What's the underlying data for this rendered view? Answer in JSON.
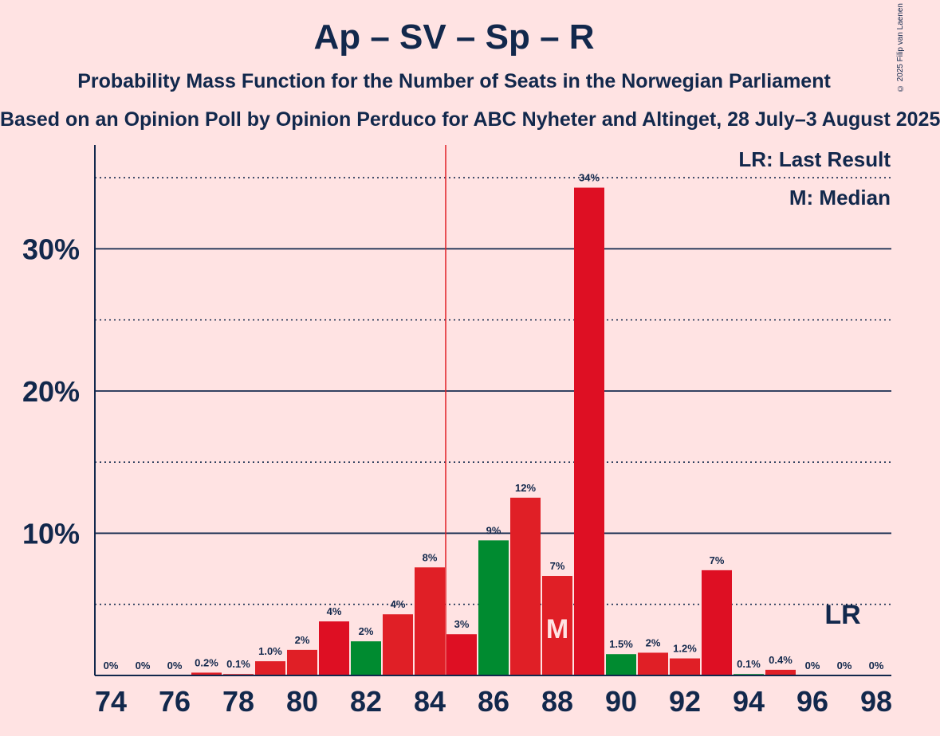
{
  "header": {
    "title": "Ap – SV – Sp – R",
    "subtitle": "Probability Mass Function for the Number of Seats in the Norwegian Parliament",
    "subtitle2": "Based on an Opinion Poll by Opinion Perduco for ABC Nyheter and Altinget, 28 July–3 August 2025",
    "copyright": "© 2025 Filip van Laenen"
  },
  "legend": {
    "lr": "LR: Last Result",
    "m": "M: Median"
  },
  "colors": {
    "background": "#FFE3E3",
    "text": "#12284C",
    "red": "#E01F26",
    "darkred": "#DE0F23",
    "green": "#008B30",
    "median_line": "#E01F26"
  },
  "chart_data": {
    "type": "bar",
    "title": "Ap – SV – Sp – R",
    "x": [
      74,
      75,
      76,
      77,
      78,
      79,
      80,
      81,
      82,
      83,
      84,
      85,
      86,
      87,
      88,
      89,
      90,
      91,
      92,
      93,
      94,
      95,
      96,
      97,
      98
    ],
    "values": [
      0,
      0,
      0,
      0.2,
      0.1,
      1.0,
      1.8,
      3.8,
      2.4,
      4.3,
      7.6,
      2.9,
      9.5,
      12.5,
      7.0,
      34.3,
      1.5,
      1.6,
      1.2,
      7.4,
      0.1,
      0.4,
      0,
      0,
      0
    ],
    "data_labels": [
      "0%",
      "0%",
      "0%",
      "0.2%",
      "0.1%",
      "1.0%",
      "2%",
      "4%",
      "2%",
      "4%",
      "8%",
      "3%",
      "9%",
      "12%",
      "7%",
      "34%",
      "1.5%",
      "2%",
      "1.2%",
      "7%",
      "0.1%",
      "0.4%",
      "0%",
      "0%",
      "0%"
    ],
    "bar_colors": [
      "red",
      "red",
      "red",
      "red",
      "red",
      "red",
      "red",
      "darkred",
      "green",
      "red",
      "red",
      "darkred",
      "green",
      "red",
      "red",
      "darkred",
      "green",
      "red",
      "red",
      "darkred",
      "green",
      "red",
      "red",
      "red",
      "red"
    ],
    "xticks": [
      "74",
      "76",
      "78",
      "80",
      "82",
      "84",
      "86",
      "88",
      "90",
      "92",
      "94",
      "96",
      "98"
    ],
    "yticks": [
      "10%",
      "20%",
      "30%"
    ],
    "ylim": [
      0,
      37.3
    ],
    "majority_line": 84.5,
    "median": 88,
    "median_label": "M",
    "last_result": 97,
    "last_result_label": "LR",
    "grid": true
  }
}
